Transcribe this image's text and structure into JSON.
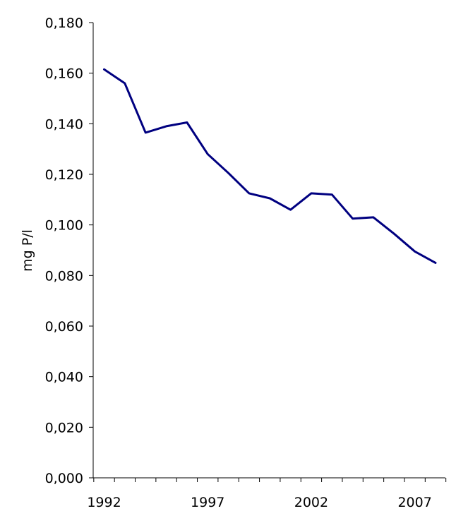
{
  "chart_data": {
    "type": "line",
    "title": "",
    "xlabel": "",
    "ylabel": "mg P/l",
    "ylim": [
      0,
      0.18
    ],
    "y_ticks": [
      "0,000",
      "0,020",
      "0,040",
      "0,060",
      "0,080",
      "0,100",
      "0,120",
      "0,140",
      "0,160",
      "0,180"
    ],
    "x_ticks": [
      "1992",
      "1997",
      "2002",
      "2007"
    ],
    "grid": false,
    "line_color": "#000080",
    "series": [
      {
        "x": [
          1992,
          1993,
          1994,
          1995,
          1996,
          1997,
          1998,
          1999,
          2000,
          2001,
          2002,
          2003,
          2004,
          2005,
          2006,
          2007,
          2008
        ],
        "values": [
          0.1615,
          0.156,
          0.1365,
          0.139,
          0.1405,
          0.128,
          0.1205,
          0.1125,
          0.1105,
          0.106,
          0.1125,
          0.112,
          0.1025,
          0.103,
          0.0965,
          0.0895,
          0.085
        ]
      }
    ]
  }
}
